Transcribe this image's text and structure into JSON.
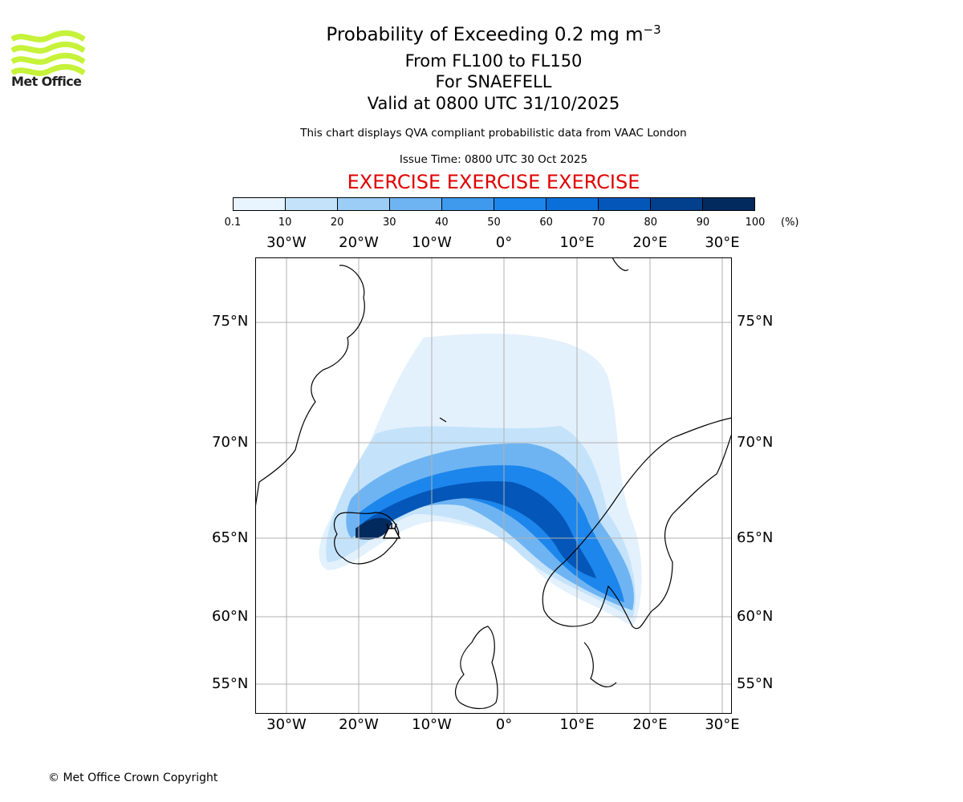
{
  "header": {
    "logo_text": "Met Office",
    "title_main": "Probability of Exceeding 0.2 mg m",
    "title_exponent": "−3",
    "flight_levels": "From FL100 to FL150",
    "volcano": "For SNAEFELL",
    "valid_time": "Valid at 0800 UTC 31/10/2025",
    "description": "This chart displays QVA compliant probabilistic data from VAAC London",
    "issue_time": "Issue Time: 0800 UTC 30 Oct 2025",
    "exercise_banner": "EXERCISE EXERCISE EXERCISE"
  },
  "colorbar": {
    "ticks": [
      "0.1",
      "10",
      "20",
      "30",
      "40",
      "50",
      "60",
      "70",
      "80",
      "90",
      "100"
    ],
    "unit": "(%)",
    "colors": [
      "#e8f4fe",
      "#c4e3fb",
      "#9ccdf7",
      "#6fb4f2",
      "#3f9aee",
      "#1c86ec",
      "#0a6fd9",
      "#0457b8",
      "#023f8c",
      "#022a5e"
    ]
  },
  "map": {
    "lon_labels": [
      "30°W",
      "20°W",
      "10°W",
      "0°",
      "10°E",
      "20°E",
      "30°E"
    ],
    "lat_labels": [
      "75°N",
      "70°N",
      "65°N",
      "60°N",
      "55°N"
    ],
    "source_marker": "volcano-marker"
  },
  "footer": {
    "copyright": "© Met Office Crown Copyright"
  }
}
